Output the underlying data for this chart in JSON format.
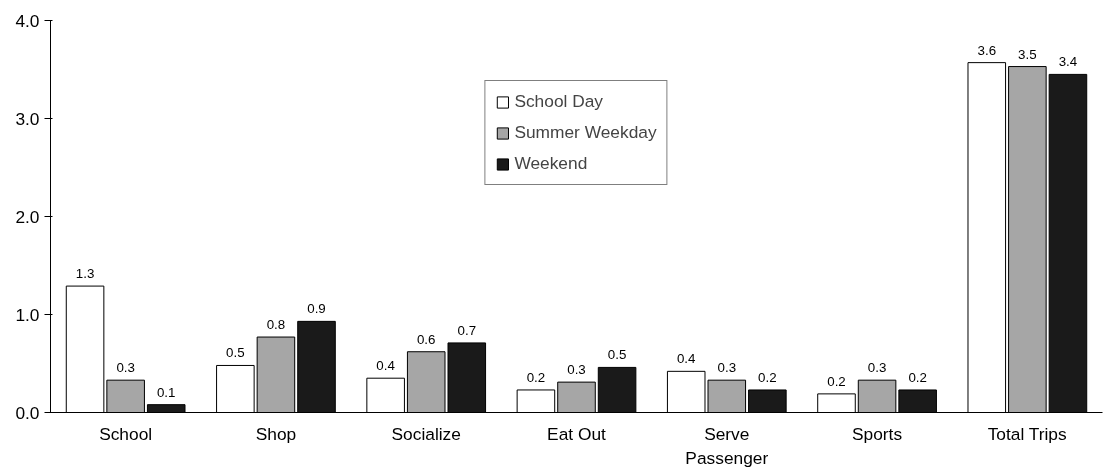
{
  "chart_data": {
    "type": "bar",
    "categories": [
      "School",
      "Shop",
      "Socialize",
      "Eat Out",
      "Serve\nPassenger",
      "Sports",
      "Total Trips"
    ],
    "series": [
      {
        "name": "School Day",
        "color": "#ffffff",
        "values": [
          1.29,
          0.48,
          0.35,
          0.23,
          0.42,
          0.19,
          3.57
        ],
        "value_labels": [
          "1.3",
          "0.5",
          "0.4",
          "0.2",
          "0.4",
          "0.2",
          "3.6"
        ]
      },
      {
        "name": "Summer Weekday",
        "color": "#a6a6a6",
        "values": [
          0.33,
          0.77,
          0.62,
          0.31,
          0.33,
          0.33,
          3.53
        ],
        "value_labels": [
          "0.3",
          "0.8",
          "0.6",
          "0.3",
          "0.3",
          "0.3",
          "3.5"
        ]
      },
      {
        "name": "Weekend",
        "color": "#1a1a1a",
        "values": [
          0.08,
          0.93,
          0.71,
          0.46,
          0.23,
          0.23,
          3.45
        ],
        "value_labels": [
          "0.1",
          "0.9",
          "0.7",
          "0.5",
          "0.2",
          "0.2",
          "3.4"
        ]
      }
    ],
    "ylim": [
      0,
      4
    ],
    "yticks": [
      {
        "value": 0,
        "label": "0.0"
      },
      {
        "value": 1,
        "label": "1.0"
      },
      {
        "value": 2,
        "label": "2.0"
      },
      {
        "value": 3,
        "label": "3.0"
      },
      {
        "value": 4,
        "label": "4.0"
      }
    ],
    "grid": false,
    "legend": "top"
  }
}
